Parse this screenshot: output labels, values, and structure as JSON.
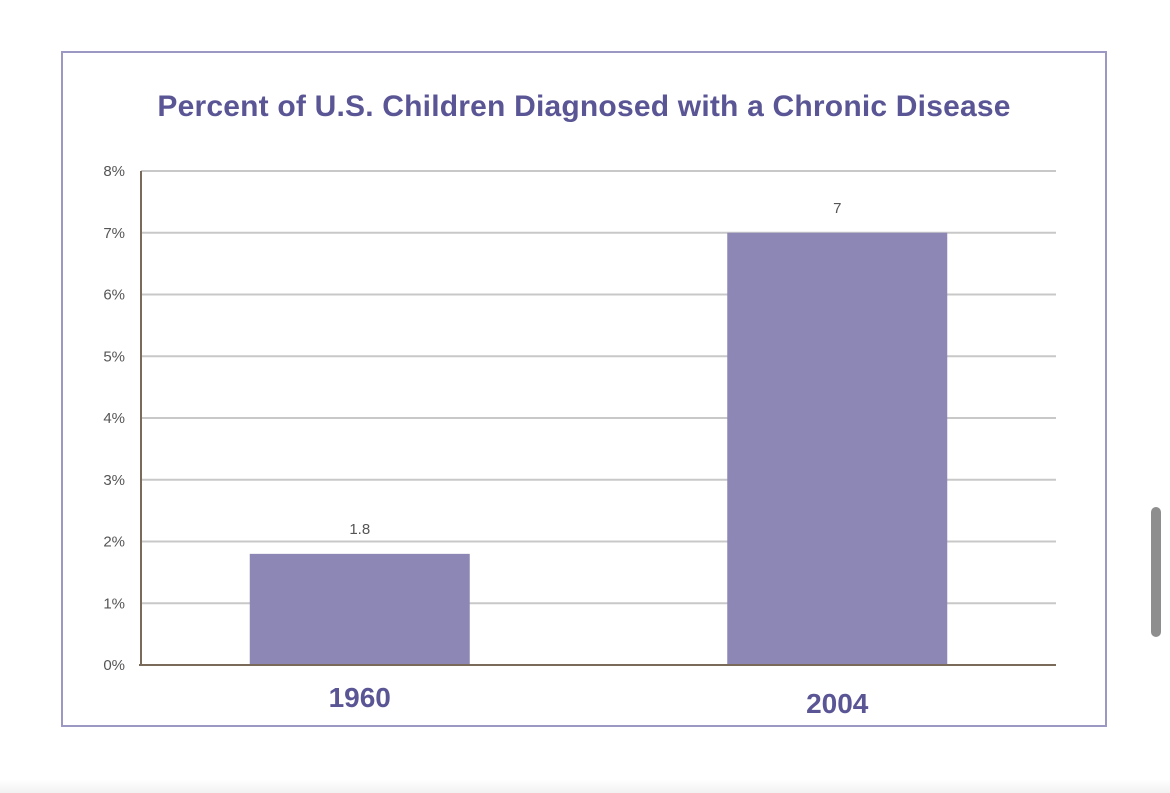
{
  "chart_data": {
    "type": "bar",
    "title": "Percent of U.S. Children Diagnosed with a Chronic Disease",
    "xlabel": "",
    "ylabel": "",
    "categories": [
      "1960",
      "2004"
    ],
    "values": [
      1.8,
      7
    ],
    "data_labels": [
      "1.8",
      "7"
    ],
    "ylim": [
      0,
      8
    ],
    "yticks": [
      0,
      1,
      2,
      3,
      4,
      5,
      6,
      7,
      8
    ],
    "ytick_labels": [
      "0%",
      "1%",
      "2%",
      "3%",
      "4%",
      "5%",
      "6%",
      "7%",
      "8%"
    ],
    "grid": true,
    "bar_color": "#8c87b5",
    "title_color": "#5a5594",
    "axis_text_color": "#555555",
    "grid_color": "#c8c8c8",
    "axis_color": "#7a6a5a"
  }
}
